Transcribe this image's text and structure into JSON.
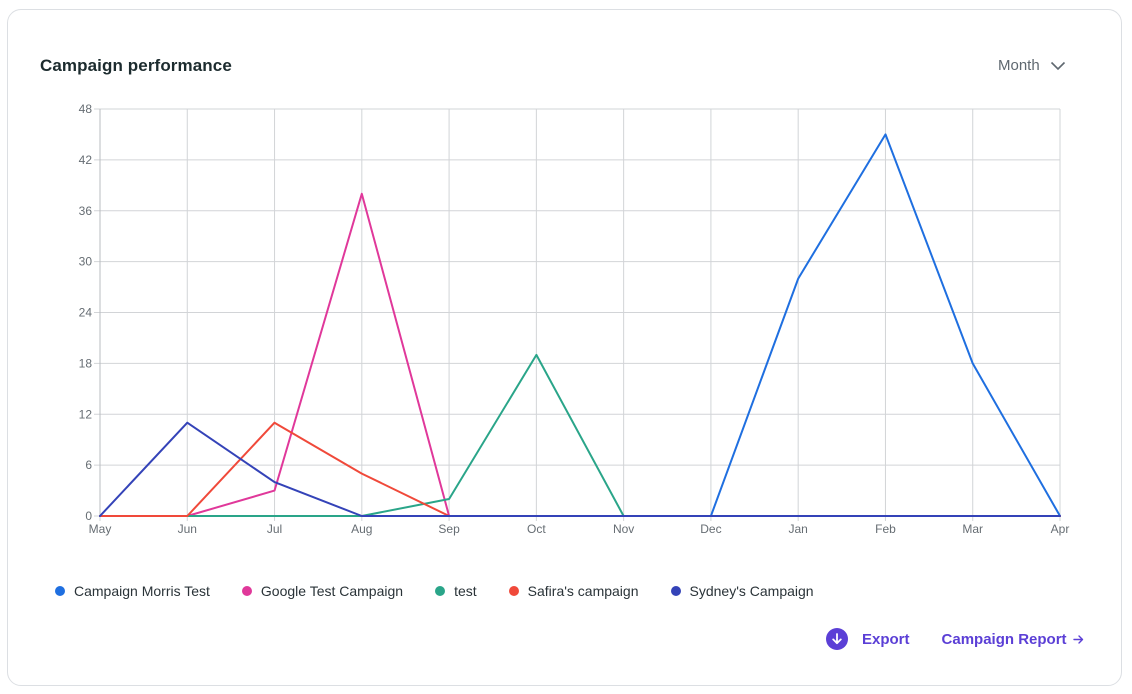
{
  "header": {
    "title": "Campaign performance",
    "period_label": "Month"
  },
  "chart_data": {
    "type": "line",
    "title": "Campaign performance",
    "categories": [
      "May",
      "Jun",
      "Jul",
      "Aug",
      "Sep",
      "Oct",
      "Nov",
      "Dec",
      "Jan",
      "Feb",
      "Mar",
      "Apr"
    ],
    "yticks": [
      "0",
      "6",
      "12",
      "18",
      "24",
      "30",
      "36",
      "42",
      "48"
    ],
    "ylim": [
      0,
      48
    ],
    "grid": true,
    "legend_position": "bottom-left",
    "series": [
      {
        "name": "Campaign Morris Test",
        "color": "#1f6fe0",
        "values": [
          0,
          0,
          0,
          0,
          0,
          0,
          0,
          0,
          28,
          45,
          18,
          0
        ]
      },
      {
        "name": "Google Test Campaign",
        "color": "#e0389a",
        "values": [
          0,
          0,
          3,
          38,
          0,
          0,
          0,
          0,
          0,
          0,
          0,
          0
        ]
      },
      {
        "name": "test",
        "color": "#2aa589",
        "values": [
          0,
          0,
          0,
          0,
          2,
          19,
          0,
          0,
          0,
          0,
          0,
          0
        ]
      },
      {
        "name": "Safira's campaign",
        "color": "#f0493a",
        "values": [
          0,
          0,
          11,
          5,
          0,
          0,
          0,
          0,
          0,
          0,
          0,
          0
        ]
      },
      {
        "name": "Sydney's Campaign",
        "color": "#3443b8",
        "values": [
          0,
          11,
          4,
          0,
          0,
          0,
          0,
          0,
          0,
          0,
          0,
          0
        ]
      }
    ]
  },
  "actions": {
    "export_label": "Export",
    "report_label": "Campaign Report"
  },
  "colors": {
    "accent": "#5b3fd6"
  }
}
